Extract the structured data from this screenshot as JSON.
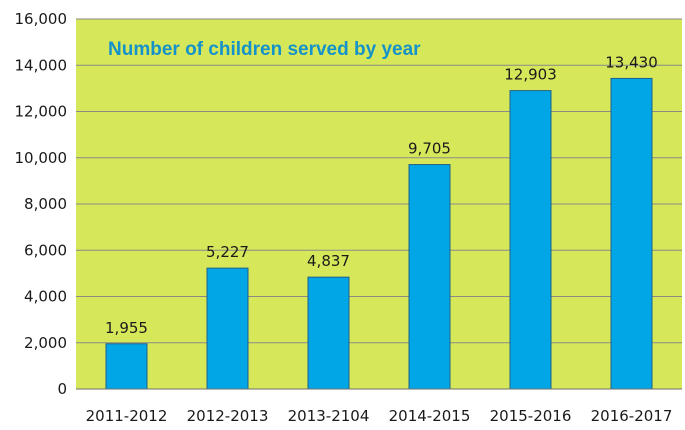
{
  "chart_data": {
    "type": "bar",
    "title": "Number of children served by year",
    "categories": [
      "2011-2012",
      "2012-2013",
      "2013-2104",
      "2014-2015",
      "2015-2016",
      "2016-2017"
    ],
    "values": [
      1955,
      5227,
      4837,
      9705,
      12903,
      13430
    ],
    "value_labels": [
      "1,955",
      "5,227",
      "4,837",
      "9,705",
      "12,903",
      "13,430"
    ],
    "y_ticks": [
      "0",
      "2,000",
      "4,000",
      "6,000",
      "8,000",
      "10,000",
      "12,000",
      "14,000",
      "16,000"
    ],
    "ylim": [
      0,
      16000
    ],
    "xlabel": "",
    "ylabel": "",
    "grid": true,
    "legend": "none",
    "colors": {
      "plot_background": "#d6e85a",
      "bar_fill": "#00a6e6",
      "bar_stroke": "#1f5f8a",
      "title": "#1592c9",
      "gridline": "#8a8a8a"
    }
  }
}
